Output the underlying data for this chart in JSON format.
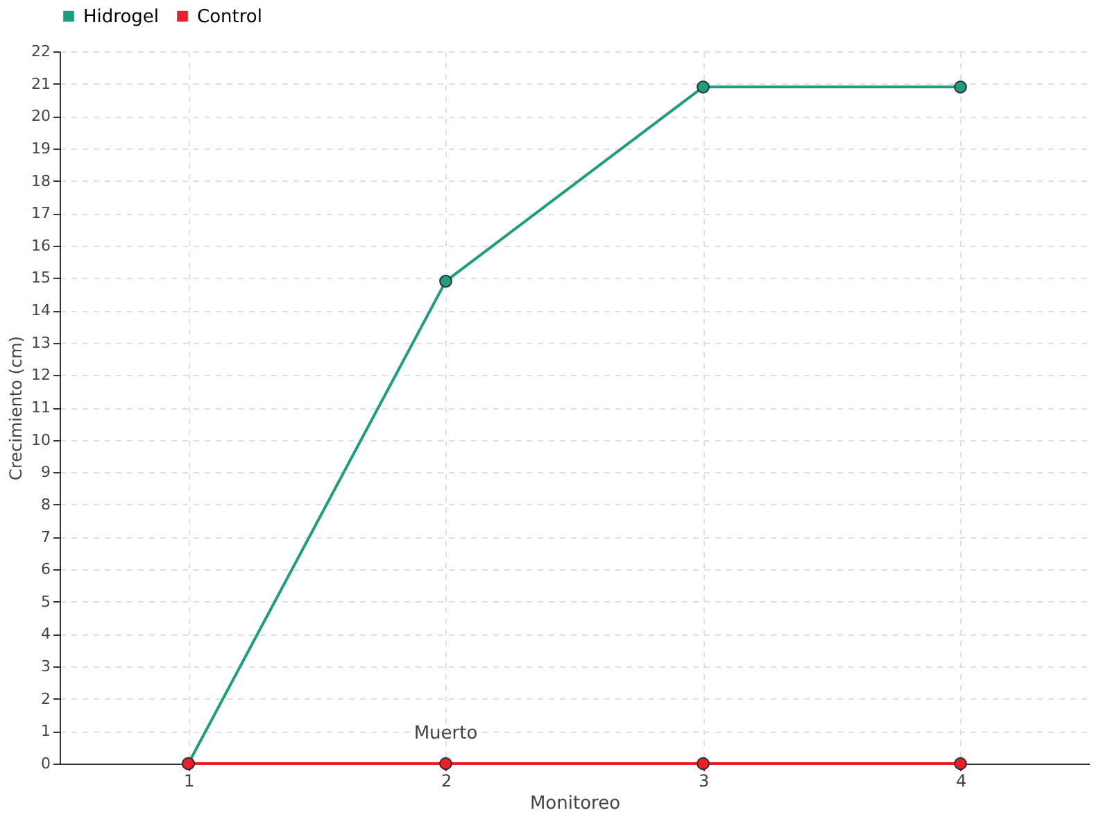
{
  "chart_data": {
    "type": "line",
    "xlabel": "Monitoreo",
    "ylabel": "Crecimiento (cm)",
    "categories": [
      "1",
      "2",
      "3",
      "4"
    ],
    "series": [
      {
        "name": "Hidrogel",
        "color": "#1f9e7f",
        "values": [
          0,
          14.9,
          20.9,
          20.9
        ]
      },
      {
        "name": "Control",
        "color": "#e8202a",
        "values": [
          0,
          0,
          0,
          0
        ]
      }
    ],
    "ylim": [
      0,
      22
    ],
    "yticks": [
      0,
      1,
      2,
      3,
      4,
      5,
      6,
      7,
      8,
      9,
      10,
      11,
      12,
      13,
      14,
      15,
      16,
      17,
      18,
      19,
      20,
      21,
      22
    ],
    "grid": true,
    "legend": "top left",
    "marker": "circle",
    "line_style": "solid",
    "annotations": [
      {
        "text": "Muerto",
        "x": "2",
        "y": 0
      }
    ]
  }
}
